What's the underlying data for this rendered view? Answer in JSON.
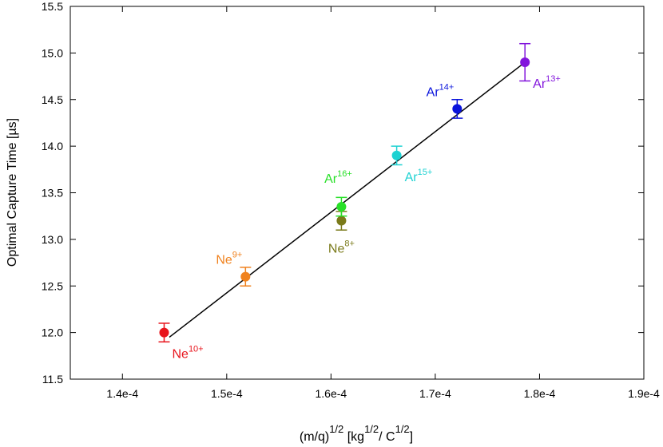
{
  "chart_data": {
    "type": "scatter",
    "title": "",
    "xlabel": {
      "main": "(m/q)",
      "exp": "1/2",
      "unit_open": " [kg",
      "unit_exp1": "1/2",
      "unit_mid": "/ C",
      "unit_exp2": "1/2",
      "unit_close": "]"
    },
    "ylabel": "Optimal Capture Time [µs]",
    "xlim": [
      0.000135,
      0.00019
    ],
    "ylim": [
      11.5,
      15.5
    ],
    "x_ticks": [
      0.00014,
      0.00015,
      0.00016,
      0.00017,
      0.00018,
      0.00019
    ],
    "x_tick_labels": [
      "1.4e-4",
      "1.5e-4",
      "1.6e-4",
      "1.7e-4",
      "1.8e-4",
      "1.9e-4"
    ],
    "y_ticks": [
      11.5,
      12.0,
      12.5,
      13.0,
      13.5,
      14.0,
      14.5,
      15.0,
      15.5
    ],
    "y_tick_labels": [
      "11.5",
      "12.0",
      "12.5",
      "13.0",
      "13.5",
      "14.0",
      "14.5",
      "15.0",
      "15.5"
    ],
    "grid": false,
    "points": [
      {
        "ion": "Ne",
        "charge": "10+",
        "x": 0.000144,
        "y": 12.0,
        "err": 0.1,
        "color": "#e8141c",
        "label_pos": "below-right"
      },
      {
        "ion": "Ne",
        "charge": "9+",
        "x": 0.0001518,
        "y": 12.6,
        "err": 0.1,
        "color": "#f0821e",
        "label_pos": "above-left"
      },
      {
        "ion": "Ne",
        "charge": "8+",
        "x": 0.000161,
        "y": 13.2,
        "err": 0.1,
        "color": "#7a7a1a",
        "label_pos": "below"
      },
      {
        "ion": "Ar",
        "charge": "16+",
        "x": 0.000161,
        "y": 13.35,
        "err": 0.1,
        "color": "#28e028",
        "label_pos": "above"
      },
      {
        "ion": "Ar",
        "charge": "15+",
        "x": 0.0001663,
        "y": 13.9,
        "err": 0.1,
        "color": "#1ed2d2",
        "label_pos": "below-right"
      },
      {
        "ion": "Ar",
        "charge": "14+",
        "x": 0.0001721,
        "y": 14.4,
        "err": 0.1,
        "color": "#0a14dc",
        "label_pos": "above-left"
      },
      {
        "ion": "Ar",
        "charge": "13+",
        "x": 0.0001786,
        "y": 14.9,
        "err": 0.2,
        "color": "#8214dc",
        "label_pos": "below-right"
      }
    ],
    "fit_line": {
      "x": [
        0.0001445,
        0.0001786
      ],
      "y": [
        11.95,
        14.9
      ],
      "color": "#000000"
    }
  }
}
